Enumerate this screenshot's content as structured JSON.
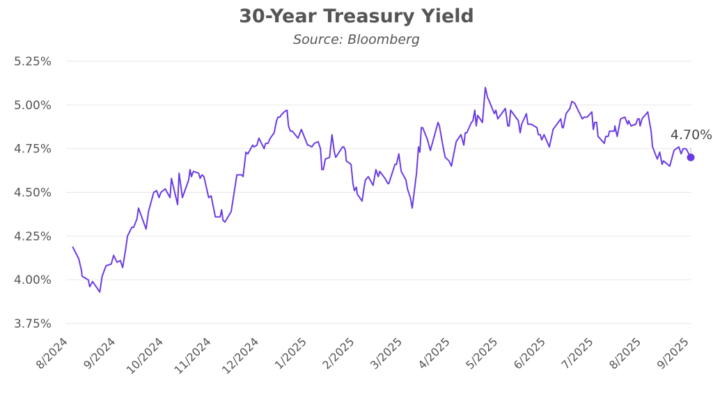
{
  "chart_data": {
    "type": "line",
    "title": "30-Year Treasury Yield",
    "subtitle": "Source: Bloomberg",
    "xlabel": "",
    "ylabel": "",
    "x_unit": "months since 8/2024",
    "ylim": [
      3.75,
      5.25
    ],
    "xlim": [
      0,
      13
    ],
    "grid": true,
    "yticks": [
      {
        "v": 3.75,
        "label": "3.75%"
      },
      {
        "v": 4.0,
        "label": "4.00%"
      },
      {
        "v": 4.25,
        "label": "4.25%"
      },
      {
        "v": 4.5,
        "label": "4.50%"
      },
      {
        "v": 4.75,
        "label": "4.75%"
      },
      {
        "v": 5.0,
        "label": "5.00%"
      },
      {
        "v": 5.25,
        "label": "5.25%"
      }
    ],
    "xticks": [
      "8/2024",
      "9/2024",
      "10/2024",
      "11/2024",
      "12/2024",
      "1/2025",
      "2/2025",
      "3/2025",
      "4/2025",
      "5/2025",
      "6/2025",
      "7/2025",
      "8/2025",
      "9/2025"
    ],
    "line_color": "#6a3be4",
    "end_label": "4.70%",
    "series": [
      {
        "name": "30-Year Treasury Yield",
        "points": [
          [
            0.09,
            4.19
          ],
          [
            0.22,
            4.12
          ],
          [
            0.28,
            4.05
          ],
          [
            0.29,
            4.02
          ],
          [
            0.42,
            4.0
          ],
          [
            0.45,
            3.96
          ],
          [
            0.51,
            3.99
          ],
          [
            0.66,
            3.93
          ],
          [
            0.71,
            4.02
          ],
          [
            0.79,
            4.08
          ],
          [
            0.9,
            4.09
          ],
          [
            0.95,
            4.14
          ],
          [
            1.02,
            4.1
          ],
          [
            1.09,
            4.11
          ],
          [
            1.14,
            4.07
          ],
          [
            1.2,
            4.17
          ],
          [
            1.24,
            4.25
          ],
          [
            1.33,
            4.3
          ],
          [
            1.37,
            4.3
          ],
          [
            1.44,
            4.35
          ],
          [
            1.47,
            4.41
          ],
          [
            1.63,
            4.29
          ],
          [
            1.68,
            4.39
          ],
          [
            1.79,
            4.5
          ],
          [
            1.85,
            4.51
          ],
          [
            1.9,
            4.47
          ],
          [
            1.94,
            4.5
          ],
          [
            2.03,
            4.52
          ],
          [
            2.07,
            4.5
          ],
          [
            2.13,
            4.47
          ],
          [
            2.16,
            4.58
          ],
          [
            2.29,
            4.43
          ],
          [
            2.32,
            4.61
          ],
          [
            2.39,
            4.47
          ],
          [
            2.52,
            4.57
          ],
          [
            2.55,
            4.63
          ],
          [
            2.58,
            4.59
          ],
          [
            2.62,
            4.62
          ],
          [
            2.73,
            4.61
          ],
          [
            2.76,
            4.58
          ],
          [
            2.8,
            4.6
          ],
          [
            2.84,
            4.59
          ],
          [
            2.94,
            4.47
          ],
          [
            2.99,
            4.48
          ],
          [
            3.08,
            4.36
          ],
          [
            3.18,
            4.36
          ],
          [
            3.21,
            4.4
          ],
          [
            3.24,
            4.34
          ],
          [
            3.28,
            4.33
          ],
          [
            3.41,
            4.39
          ],
          [
            3.53,
            4.6
          ],
          [
            3.63,
            4.6
          ],
          [
            3.66,
            4.59
          ],
          [
            3.72,
            4.73
          ],
          [
            3.76,
            4.72
          ],
          [
            3.86,
            4.77
          ],
          [
            3.89,
            4.76
          ],
          [
            3.95,
            4.77
          ],
          [
            3.99,
            4.81
          ],
          [
            4.1,
            4.75
          ],
          [
            4.13,
            4.78
          ],
          [
            4.18,
            4.78
          ],
          [
            4.23,
            4.81
          ],
          [
            4.31,
            4.84
          ],
          [
            4.36,
            4.91
          ],
          [
            4.39,
            4.93
          ],
          [
            4.43,
            4.93
          ],
          [
            4.45,
            4.94
          ],
          [
            4.52,
            4.96
          ],
          [
            4.58,
            4.97
          ],
          [
            4.61,
            4.88
          ],
          [
            4.65,
            4.85
          ],
          [
            4.69,
            4.85
          ],
          [
            4.81,
            4.81
          ],
          [
            4.88,
            4.86
          ],
          [
            5.01,
            4.77
          ],
          [
            5.03,
            4.77
          ],
          [
            5.1,
            4.76
          ],
          [
            5.15,
            4.78
          ],
          [
            5.23,
            4.79
          ],
          [
            5.28,
            4.75
          ],
          [
            5.31,
            4.63
          ],
          [
            5.34,
            4.63
          ],
          [
            5.38,
            4.69
          ],
          [
            5.47,
            4.7
          ],
          [
            5.52,
            4.83
          ],
          [
            5.57,
            4.73
          ],
          [
            5.6,
            4.7
          ],
          [
            5.74,
            4.76
          ],
          [
            5.77,
            4.76
          ],
          [
            5.8,
            4.74
          ],
          [
            5.82,
            4.68
          ],
          [
            5.92,
            4.66
          ],
          [
            5.96,
            4.55
          ],
          [
            5.99,
            4.51
          ],
          [
            6.03,
            4.53
          ],
          [
            6.05,
            4.49
          ],
          [
            6.15,
            4.45
          ],
          [
            6.2,
            4.54
          ],
          [
            6.22,
            4.57
          ],
          [
            6.28,
            4.59
          ],
          [
            6.38,
            4.54
          ],
          [
            6.44,
            4.63
          ],
          [
            6.49,
            4.59
          ],
          [
            6.52,
            4.62
          ],
          [
            6.63,
            4.58
          ],
          [
            6.69,
            4.55
          ],
          [
            6.71,
            4.55
          ],
          [
            6.84,
            4.66
          ],
          [
            6.87,
            4.66
          ],
          [
            6.92,
            4.72
          ],
          [
            6.97,
            4.62
          ],
          [
            7.07,
            4.57
          ],
          [
            7.1,
            4.52
          ],
          [
            7.16,
            4.47
          ],
          [
            7.2,
            4.41
          ],
          [
            7.29,
            4.61
          ],
          [
            7.33,
            4.76
          ],
          [
            7.36,
            4.73
          ],
          [
            7.39,
            4.87
          ],
          [
            7.42,
            4.87
          ],
          [
            7.52,
            4.8
          ],
          [
            7.58,
            4.74
          ],
          [
            7.64,
            4.8
          ],
          [
            7.74,
            4.9
          ],
          [
            7.77,
            4.88
          ],
          [
            7.84,
            4.77
          ],
          [
            7.89,
            4.7
          ],
          [
            7.97,
            4.68
          ],
          [
            8.02,
            4.65
          ],
          [
            8.12,
            4.79
          ],
          [
            8.22,
            4.83
          ],
          [
            8.28,
            4.77
          ],
          [
            8.31,
            4.84
          ],
          [
            8.34,
            4.84
          ],
          [
            8.44,
            4.9
          ],
          [
            8.47,
            4.91
          ],
          [
            8.51,
            4.97
          ],
          [
            8.54,
            4.88
          ],
          [
            8.57,
            4.94
          ],
          [
            8.67,
            4.9
          ],
          [
            8.73,
            5.1
          ],
          [
            8.78,
            5.04
          ],
          [
            8.8,
            5.03
          ],
          [
            8.92,
            4.95
          ],
          [
            8.95,
            4.97
          ],
          [
            8.99,
            4.92
          ],
          [
            9.15,
            4.98
          ],
          [
            9.2,
            4.88
          ],
          [
            9.23,
            4.88
          ],
          [
            9.26,
            4.97
          ],
          [
            9.42,
            4.91
          ],
          [
            9.46,
            4.84
          ],
          [
            9.49,
            4.89
          ],
          [
            9.59,
            4.95
          ],
          [
            9.62,
            4.89
          ],
          [
            9.69,
            4.89
          ],
          [
            9.81,
            4.87
          ],
          [
            9.84,
            4.83
          ],
          [
            9.88,
            4.83
          ],
          [
            9.91,
            4.8
          ],
          [
            9.96,
            4.83
          ],
          [
            10.07,
            4.76
          ],
          [
            10.15,
            4.86
          ],
          [
            10.31,
            4.92
          ],
          [
            10.34,
            4.87
          ],
          [
            10.36,
            4.87
          ],
          [
            10.42,
            4.95
          ],
          [
            10.5,
            4.98
          ],
          [
            10.54,
            5.02
          ],
          [
            10.6,
            5.01
          ],
          [
            10.76,
            4.92
          ],
          [
            10.8,
            4.93
          ],
          [
            10.86,
            4.93
          ],
          [
            10.96,
            4.96
          ],
          [
            10.99,
            4.86
          ],
          [
            11.02,
            4.9
          ],
          [
            11.06,
            4.9
          ],
          [
            11.09,
            4.82
          ],
          [
            11.22,
            4.78
          ],
          [
            11.25,
            4.82
          ],
          [
            11.3,
            4.82
          ],
          [
            11.33,
            4.85
          ],
          [
            11.43,
            4.85
          ],
          [
            11.44,
            4.88
          ],
          [
            11.49,
            4.82
          ],
          [
            11.56,
            4.92
          ],
          [
            11.65,
            4.93
          ],
          [
            11.71,
            4.89
          ],
          [
            11.73,
            4.91
          ],
          [
            11.78,
            4.88
          ],
          [
            11.88,
            4.89
          ],
          [
            11.92,
            4.92
          ],
          [
            11.95,
            4.92
          ],
          [
            11.97,
            4.88
          ],
          [
            12.01,
            4.92
          ],
          [
            12.13,
            4.96
          ],
          [
            12.2,
            4.85
          ],
          [
            12.23,
            4.76
          ],
          [
            12.33,
            4.69
          ],
          [
            12.38,
            4.73
          ],
          [
            12.43,
            4.66
          ],
          [
            12.46,
            4.68
          ],
          [
            12.59,
            4.65
          ],
          [
            12.68,
            4.74
          ],
          [
            12.78,
            4.76
          ],
          [
            12.83,
            4.72
          ],
          [
            12.87,
            4.75
          ],
          [
            12.93,
            4.75
          ],
          [
            13.03,
            4.7
          ]
        ]
      }
    ]
  }
}
